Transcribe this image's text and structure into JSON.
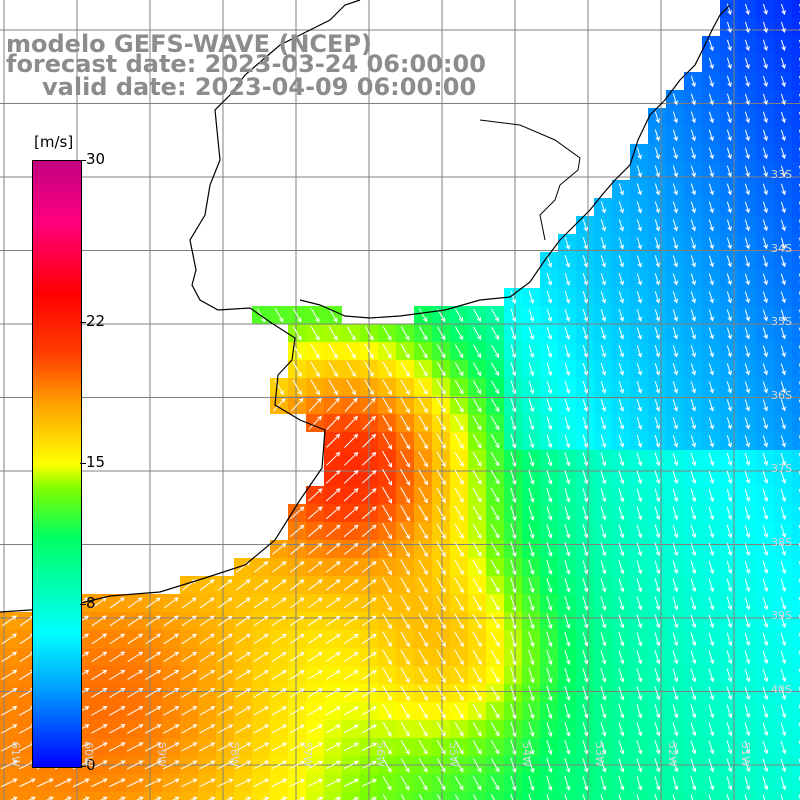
{
  "title": {
    "line1": "modelo GEFS-WAVE (NCEP)",
    "line2": "forecast date: 2023-03-24 06:00:00",
    "line3": "valid date: 2023-04-09 06:00:00"
  },
  "colorbar": {
    "unit": "[m/s]",
    "ticks": [
      "30",
      "22",
      "15",
      "8",
      "0"
    ],
    "tick_values": [
      30,
      22,
      15,
      8,
      0
    ],
    "vmin": 0,
    "vmax": 30,
    "colors": [
      "#0000ff",
      "#00a0ff",
      "#00ffff",
      "#00ff60",
      "#80ff00",
      "#ffff00",
      "#ffa000",
      "#ff4000",
      "#ff0000",
      "#ff0080",
      "#c00080"
    ]
  },
  "map": {
    "lat_labels": [
      "33S",
      "34S",
      "35S",
      "36S",
      "37S",
      "38S",
      "39S",
      "40S"
    ],
    "lat_values": [
      -33,
      -34,
      -35,
      -36,
      -37,
      -38,
      -39,
      -40
    ],
    "lon_labels": [
      "61W",
      "60W",
      "59W",
      "58W",
      "57W",
      "56W",
      "55W",
      "54W",
      "53W",
      "52W",
      "51W"
    ],
    "lon_values": [
      -61,
      -60,
      -59,
      -58,
      -57,
      -56,
      -55,
      -54,
      -53,
      -52,
      -51
    ],
    "land_color": "#ffffff",
    "coast_color": "#000000",
    "grid_color": "#808080",
    "arrow_color": "#ffffff"
  }
}
